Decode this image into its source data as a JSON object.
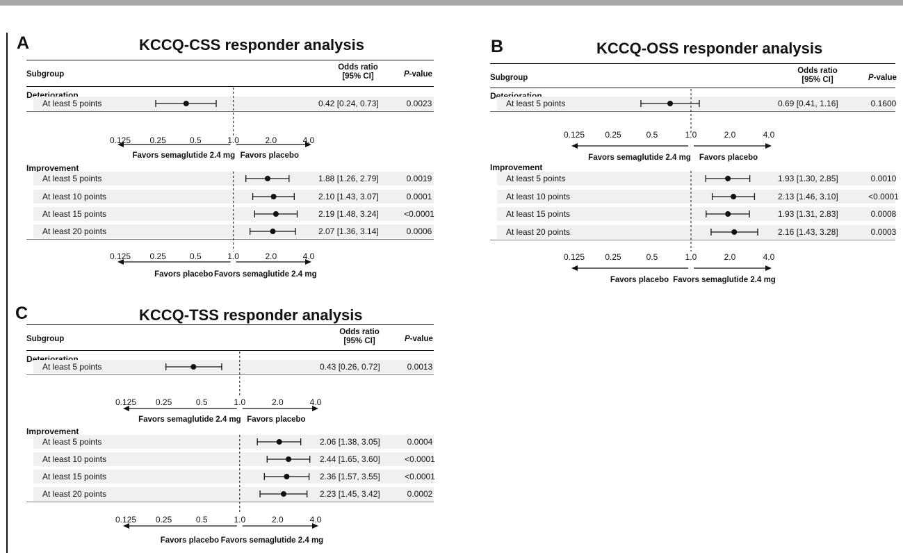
{
  "chart_data": [
    {
      "type": "forest",
      "panel_letter": "A",
      "title": "KCCQ-CSS responder analysis",
      "columns": {
        "subgroup": "Subgroup",
        "or_line1": "Odds ratio",
        "or_line2": "[95% CI]",
        "pvalue_prefix": "P",
        "pvalue_suffix": "-value"
      },
      "x_scale": "log2",
      "xlim": [
        0.125,
        4.0
      ],
      "ticks": [
        "0.125",
        "0.25",
        "0.5",
        "1.0",
        "2.0",
        "4.0"
      ],
      "tick_values": [
        0.125,
        0.25,
        0.5,
        1.0,
        2.0,
        4.0
      ],
      "deterioration": {
        "label": "Deterioration",
        "favors_left": "Favors semaglutide 2.4 mg",
        "favors_right": "Favors placebo",
        "rows": [
          {
            "label": "At least 5 points",
            "or": 0.42,
            "lo": 0.24,
            "hi": 0.73,
            "or_text": "0.42 [0.24, 0.73]",
            "p": "0.0023"
          }
        ]
      },
      "improvement": {
        "label": "Improvement",
        "favors_left": "Favors placebo",
        "favors_right": "Favors semaglutide 2.4 mg",
        "rows": [
          {
            "label": "At least 5 points",
            "or": 1.88,
            "lo": 1.26,
            "hi": 2.79,
            "or_text": "1.88 [1.26, 2.79]",
            "p": "0.0019"
          },
          {
            "label": "At least 10 points",
            "or": 2.1,
            "lo": 1.43,
            "hi": 3.07,
            "or_text": "2.10 [1.43, 3.07]",
            "p": "0.0001"
          },
          {
            "label": "At least 15 points",
            "or": 2.19,
            "lo": 1.48,
            "hi": 3.24,
            "or_text": "2.19 [1.48, 3.24]",
            "p": "<0.0001"
          },
          {
            "label": "At least 20 points",
            "or": 2.07,
            "lo": 1.36,
            "hi": 3.14,
            "or_text": "2.07 [1.36, 3.14]",
            "p": "0.0006"
          }
        ]
      }
    },
    {
      "type": "forest",
      "panel_letter": "B",
      "title": "KCCQ-OSS responder analysis",
      "columns": {
        "subgroup": "Subgroup",
        "or_line1": "Odds ratio",
        "or_line2": "[95% CI]",
        "pvalue_prefix": "P",
        "pvalue_suffix": "-value"
      },
      "x_scale": "log2",
      "xlim": [
        0.125,
        4.0
      ],
      "ticks": [
        "0.125",
        "0.25",
        "0.5",
        "1.0",
        "2.0",
        "4.0"
      ],
      "tick_values": [
        0.125,
        0.25,
        0.5,
        1.0,
        2.0,
        4.0
      ],
      "deterioration": {
        "label": "Deterioration",
        "favors_left": "Favors semaglutide 2.4 mg",
        "favors_right": "Favors placebo",
        "rows": [
          {
            "label": "At least 5 points",
            "or": 0.69,
            "lo": 0.41,
            "hi": 1.16,
            "or_text": "0.69 [0.41, 1.16]",
            "p": "0.1600"
          }
        ]
      },
      "improvement": {
        "label": "Improvement",
        "favors_left": "Favors placebo",
        "favors_right": "Favors semaglutide 2.4 mg",
        "rows": [
          {
            "label": "At least 5 points",
            "or": 1.93,
            "lo": 1.3,
            "hi": 2.85,
            "or_text": "1.93 [1.30, 2.85]",
            "p": "0.0010"
          },
          {
            "label": "At least 10 points",
            "or": 2.13,
            "lo": 1.46,
            "hi": 3.1,
            "or_text": "2.13 [1.46, 3.10]",
            "p": "<0.0001"
          },
          {
            "label": "At least 15 points",
            "or": 1.93,
            "lo": 1.31,
            "hi": 2.83,
            "or_text": "1.93 [1.31, 2.83]",
            "p": "0.0008"
          },
          {
            "label": "At least 20 points",
            "or": 2.16,
            "lo": 1.43,
            "hi": 3.28,
            "or_text": "2.16 [1.43, 3.28]",
            "p": "0.0003"
          }
        ]
      }
    },
    {
      "type": "forest",
      "panel_letter": "C",
      "title": "KCCQ-TSS responder analysis",
      "columns": {
        "subgroup": "Subgroup",
        "or_line1": "Odds ratio",
        "or_line2": "[95% CI]",
        "pvalue_prefix": "P",
        "pvalue_suffix": "-value"
      },
      "x_scale": "log2",
      "xlim": [
        0.125,
        4.0
      ],
      "ticks": [
        "0.125",
        "0.25",
        "0.5",
        "1.0",
        "2.0",
        "4.0"
      ],
      "tick_values": [
        0.125,
        0.25,
        0.5,
        1.0,
        2.0,
        4.0
      ],
      "deterioration": {
        "label": "Deterioration",
        "favors_left": "Favors semaglutide 2.4 mg",
        "favors_right": "Favors placebo",
        "rows": [
          {
            "label": "At least 5 points",
            "or": 0.43,
            "lo": 0.26,
            "hi": 0.72,
            "or_text": "0.43 [0.26, 0.72]",
            "p": "0.0013"
          }
        ]
      },
      "improvement": {
        "label": "Improvement",
        "favors_left": "Favors placebo",
        "favors_right": "Favors semaglutide 2.4 mg",
        "rows": [
          {
            "label": "At least 5 points",
            "or": 2.06,
            "lo": 1.38,
            "hi": 3.05,
            "or_text": "2.06 [1.38, 3.05]",
            "p": "0.0004"
          },
          {
            "label": "At least 10 points",
            "or": 2.44,
            "lo": 1.65,
            "hi": 3.6,
            "or_text": "2.44 [1.65, 3.60]",
            "p": "<0.0001"
          },
          {
            "label": "At least 15 points",
            "or": 2.36,
            "lo": 1.57,
            "hi": 3.55,
            "or_text": "2.36 [1.57, 3.55]",
            "p": "<0.0001"
          },
          {
            "label": "At least 20 points",
            "or": 2.23,
            "lo": 1.45,
            "hi": 3.42,
            "or_text": "2.23 [1.45, 3.42]",
            "p": "0.0002"
          }
        ]
      }
    }
  ]
}
